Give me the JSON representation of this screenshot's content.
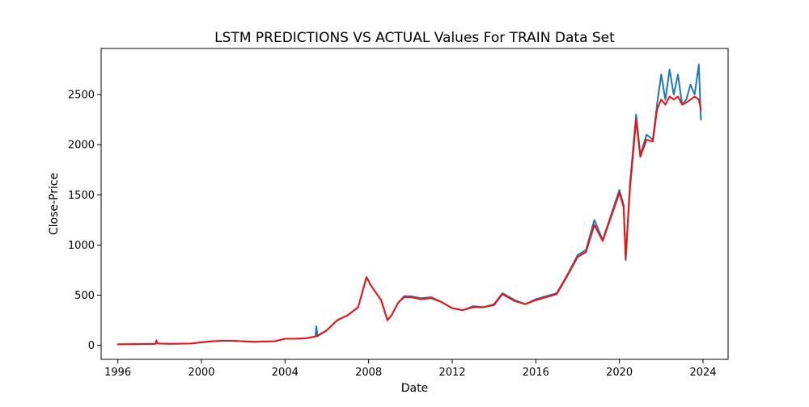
{
  "chart_data": {
    "type": "line",
    "title": "LSTM PREDICTIONS VS ACTUAL Values For TRAIN Data Set",
    "xlabel": "Date",
    "ylabel": "Close-Price",
    "xlim": [
      1995.2,
      2025.2
    ],
    "ylim": [
      -140,
      2960
    ],
    "x_ticks": [
      {
        "value": 1996,
        "label": "1996"
      },
      {
        "value": 2000,
        "label": "2000"
      },
      {
        "value": 2004,
        "label": "2004"
      },
      {
        "value": 2008,
        "label": "2008"
      },
      {
        "value": 2012,
        "label": "2012"
      },
      {
        "value": 2016,
        "label": "2016"
      },
      {
        "value": 2020,
        "label": "2020"
      },
      {
        "value": 2024,
        "label": "2024"
      }
    ],
    "y_ticks": [
      {
        "value": 0,
        "label": "0"
      },
      {
        "value": 500,
        "label": "500"
      },
      {
        "value": 1000,
        "label": "1000"
      },
      {
        "value": 1500,
        "label": "1500"
      },
      {
        "value": 2000,
        "label": "2000"
      },
      {
        "value": 2500,
        "label": "2500"
      }
    ],
    "grid": false,
    "legend": "none",
    "series": [
      {
        "color": "#1f77b4",
        "x": [
          1996.0,
          1997.0,
          1997.8,
          1997.85,
          1997.9,
          1998.5,
          1999.5,
          2000.0,
          2000.5,
          2001.0,
          2001.5,
          2002.0,
          2002.5,
          2003.0,
          2003.5,
          2004.0,
          2004.5,
          2005.0,
          2005.45,
          2005.5,
          2005.55,
          2006.0,
          2006.5,
          2007.0,
          2007.5,
          2007.9,
          2008.1,
          2008.3,
          2008.6,
          2008.9,
          2009.1,
          2009.4,
          2009.7,
          2010.0,
          2010.5,
          2011.0,
          2011.5,
          2012.0,
          2012.5,
          2013.0,
          2013.5,
          2014.0,
          2014.4,
          2015.0,
          2015.5,
          2016.0,
          2016.5,
          2017.0,
          2017.5,
          2018.0,
          2018.4,
          2018.8,
          2019.2,
          2019.6,
          2020.0,
          2020.2,
          2020.3,
          2020.5,
          2020.8,
          2021.0,
          2021.3,
          2021.6,
          2021.8,
          2022.0,
          2022.2,
          2022.4,
          2022.6,
          2022.8,
          2023.0,
          2023.2,
          2023.4,
          2023.6,
          2023.8,
          2023.9
        ],
        "values": [
          10,
          12,
          15,
          50,
          18,
          15,
          18,
          30,
          40,
          45,
          45,
          40,
          35,
          38,
          40,
          65,
          65,
          70,
          85,
          190,
          90,
          150,
          250,
          300,
          380,
          680,
          600,
          540,
          450,
          250,
          300,
          420,
          490,
          490,
          470,
          480,
          430,
          370,
          350,
          390,
          380,
          410,
          520,
          450,
          410,
          460,
          490,
          520,
          700,
          900,
          950,
          1250,
          1050,
          1300,
          1550,
          1400,
          850,
          1600,
          2300,
          1900,
          2100,
          2050,
          2400,
          2700,
          2450,
          2750,
          2500,
          2700,
          2400,
          2450,
          2600,
          2500,
          2800,
          2250
        ]
      },
      {
        "color": "#ee1111",
        "x": [
          1996.0,
          1997.0,
          1997.8,
          1997.85,
          1997.9,
          1998.5,
          1999.5,
          2000.0,
          2000.5,
          2001.0,
          2001.5,
          2002.0,
          2002.5,
          2003.0,
          2003.5,
          2004.0,
          2004.5,
          2005.0,
          2005.5,
          2006.0,
          2006.5,
          2007.0,
          2007.5,
          2007.9,
          2008.1,
          2008.3,
          2008.6,
          2008.9,
          2009.1,
          2009.4,
          2009.7,
          2010.0,
          2010.5,
          2011.0,
          2011.5,
          2012.0,
          2012.5,
          2013.0,
          2013.5,
          2014.0,
          2014.4,
          2015.0,
          2015.5,
          2016.0,
          2016.5,
          2017.0,
          2017.5,
          2018.0,
          2018.4,
          2018.8,
          2019.2,
          2019.6,
          2020.0,
          2020.2,
          2020.3,
          2020.5,
          2020.8,
          2021.0,
          2021.3,
          2021.6,
          2021.8,
          2022.0,
          2022.2,
          2022.4,
          2022.6,
          2022.8,
          2023.0,
          2023.2,
          2023.4,
          2023.6,
          2023.8,
          2023.9
        ],
        "values": [
          10,
          12,
          15,
          45,
          18,
          15,
          18,
          30,
          40,
          45,
          45,
          40,
          35,
          38,
          40,
          65,
          65,
          70,
          90,
          150,
          250,
          300,
          380,
          680,
          600,
          540,
          450,
          250,
          300,
          420,
          480,
          480,
          460,
          470,
          430,
          370,
          350,
          380,
          380,
          400,
          510,
          440,
          410,
          450,
          480,
          510,
          690,
          880,
          930,
          1200,
          1040,
          1280,
          1520,
          1380,
          870,
          1550,
          2250,
          1880,
          2050,
          2030,
          2350,
          2450,
          2400,
          2480,
          2450,
          2480,
          2400,
          2420,
          2450,
          2480,
          2450,
          2350
        ]
      }
    ]
  }
}
